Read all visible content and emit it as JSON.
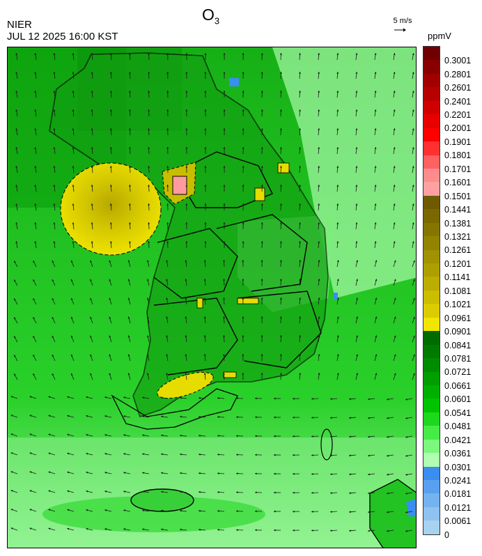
{
  "header": {
    "agency": "NIER",
    "datetime": "JUL 12 2025 16:00 KST",
    "title_main": "O",
    "title_sub": "3",
    "wind_reference": "5 m/s",
    "unit": "ppmV"
  },
  "colorbar": {
    "labels": [
      "0.3001",
      "0.2801",
      "0.2601",
      "0.2401",
      "0.2201",
      "0.2001",
      "0.1901",
      "0.1801",
      "0.1701",
      "0.1601",
      "0.1501",
      "0.1441",
      "0.1381",
      "0.1321",
      "0.1261",
      "0.1201",
      "0.1141",
      "0.1081",
      "0.1021",
      "0.0961",
      "0.0901",
      "0.0841",
      "0.0781",
      "0.0721",
      "0.0661",
      "0.0601",
      "0.0541",
      "0.0481",
      "0.0421",
      "0.0361",
      "0.0301",
      "0.0241",
      "0.0181",
      "0.0121",
      "0.0061",
      "0"
    ],
    "colors": [
      "#700000",
      "#880000",
      "#a00000",
      "#b80000",
      "#d00000",
      "#e80000",
      "#ff0000",
      "#ff3030",
      "#ff6060",
      "#ff8c8c",
      "#ffa0a0",
      "#6e5a00",
      "#7a6800",
      "#857600",
      "#938400",
      "#a09200",
      "#ae9f00",
      "#bcad00",
      "#cbbd00",
      "#dbcc00",
      "#f0e600",
      "#006b00",
      "#007a00",
      "#008c00",
      "#009e00",
      "#00b000",
      "#00c400",
      "#1ed81e",
      "#46ec46",
      "#7cf87c",
      "#b0ffb0",
      "#3a8ef0",
      "#5aa0f0",
      "#74b2f0",
      "#8ec2f0",
      "#a8d2f0"
    ]
  },
  "map_layers": {
    "background_color": "#22c322",
    "high_ozone_color": "#e6dc00",
    "peak_ozone_color": "#ff9aa0",
    "low_ozone_color": "#3a8ef0",
    "coastline_color": "#000000",
    "wind_vector_color": "#1a1a1a"
  }
}
